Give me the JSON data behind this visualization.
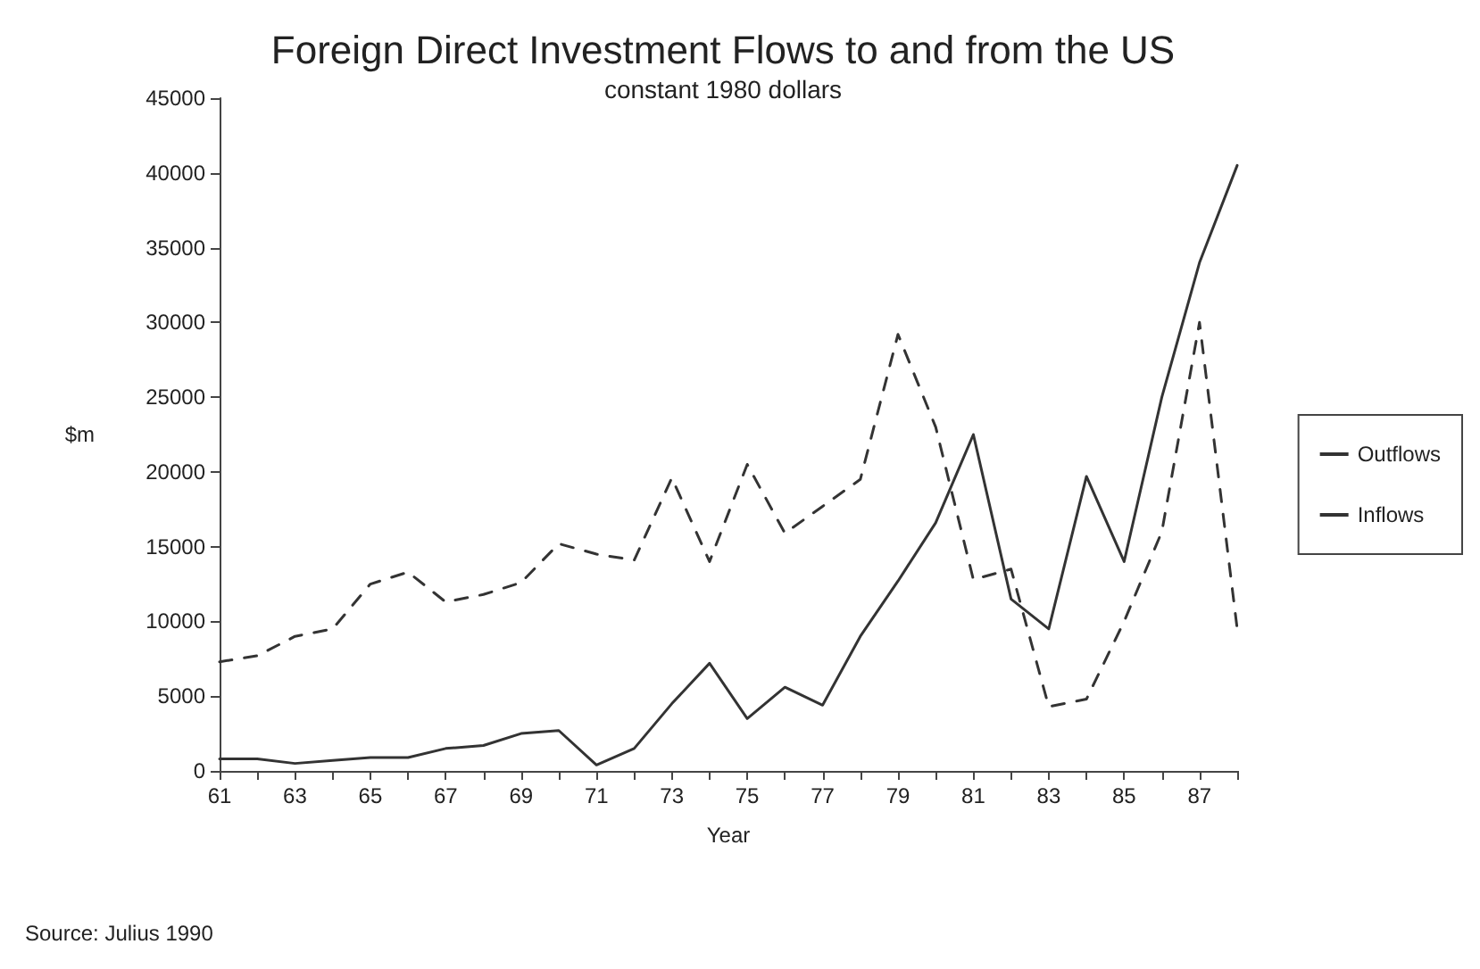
{
  "chart_data": {
    "type": "line",
    "title": "Foreign Direct Investment Flows to and from the US",
    "subtitle": "constant 1980 dollars",
    "xlabel": "Year",
    "ylabel": "$m",
    "annotations": [
      "Source: Julius 1990"
    ],
    "x": [
      61,
      62,
      63,
      64,
      65,
      66,
      67,
      68,
      69,
      70,
      71,
      72,
      73,
      74,
      75,
      76,
      77,
      78,
      79,
      80,
      81,
      82,
      83,
      84,
      85,
      86,
      87,
      88
    ],
    "series": [
      {
        "name": "Outflows",
        "color": "#333333",
        "line_style": "dashed",
        "values": [
          7300,
          7700,
          9000,
          9500,
          12500,
          13300,
          11300,
          11800,
          12600,
          15200,
          14500,
          14100,
          19600,
          14000,
          20500,
          15900,
          17700,
          19500,
          29200,
          23000,
          12800,
          13500,
          4300,
          4800,
          10000,
          16000,
          30000,
          9500
        ]
      },
      {
        "name": "Inflows",
        "color": "#333333",
        "line_style": "solid",
        "values": [
          800,
          800,
          500,
          700,
          900,
          900,
          1500,
          1700,
          2500,
          2700,
          400,
          1500,
          4500,
          7200,
          3500,
          5600,
          4400,
          9000,
          12700,
          16600,
          22500,
          11500,
          9500,
          19700,
          14000,
          25000,
          34000,
          40500
        ]
      }
    ],
    "xlim": [
      61,
      88
    ],
    "xticks": [
      61,
      {
        "value": 62,
        "label": null
      },
      63,
      {
        "value": 64,
        "label": null
      },
      65,
      {
        "value": 66,
        "label": null
      },
      67,
      {
        "value": 68,
        "label": null
      },
      69,
      {
        "value": 70,
        "label": null
      },
      71,
      {
        "value": 72,
        "label": null
      },
      73,
      {
        "value": 74,
        "label": null
      },
      75,
      {
        "value": 76,
        "label": null
      },
      77,
      {
        "value": 78,
        "label": null
      },
      79,
      {
        "value": 80,
        "label": null
      },
      81,
      {
        "value": 82,
        "label": null
      },
      83,
      {
        "value": 84,
        "label": null
      },
      85,
      {
        "value": 86,
        "label": null
      },
      87,
      {
        "value": 88,
        "label": null
      }
    ],
    "ylim": [
      0,
      45000
    ],
    "yticks": [
      0,
      5000,
      10000,
      15000,
      20000,
      25000,
      30000,
      35000,
      40000,
      45000
    ],
    "grid": false,
    "legend": "right",
    "marker": "none"
  }
}
